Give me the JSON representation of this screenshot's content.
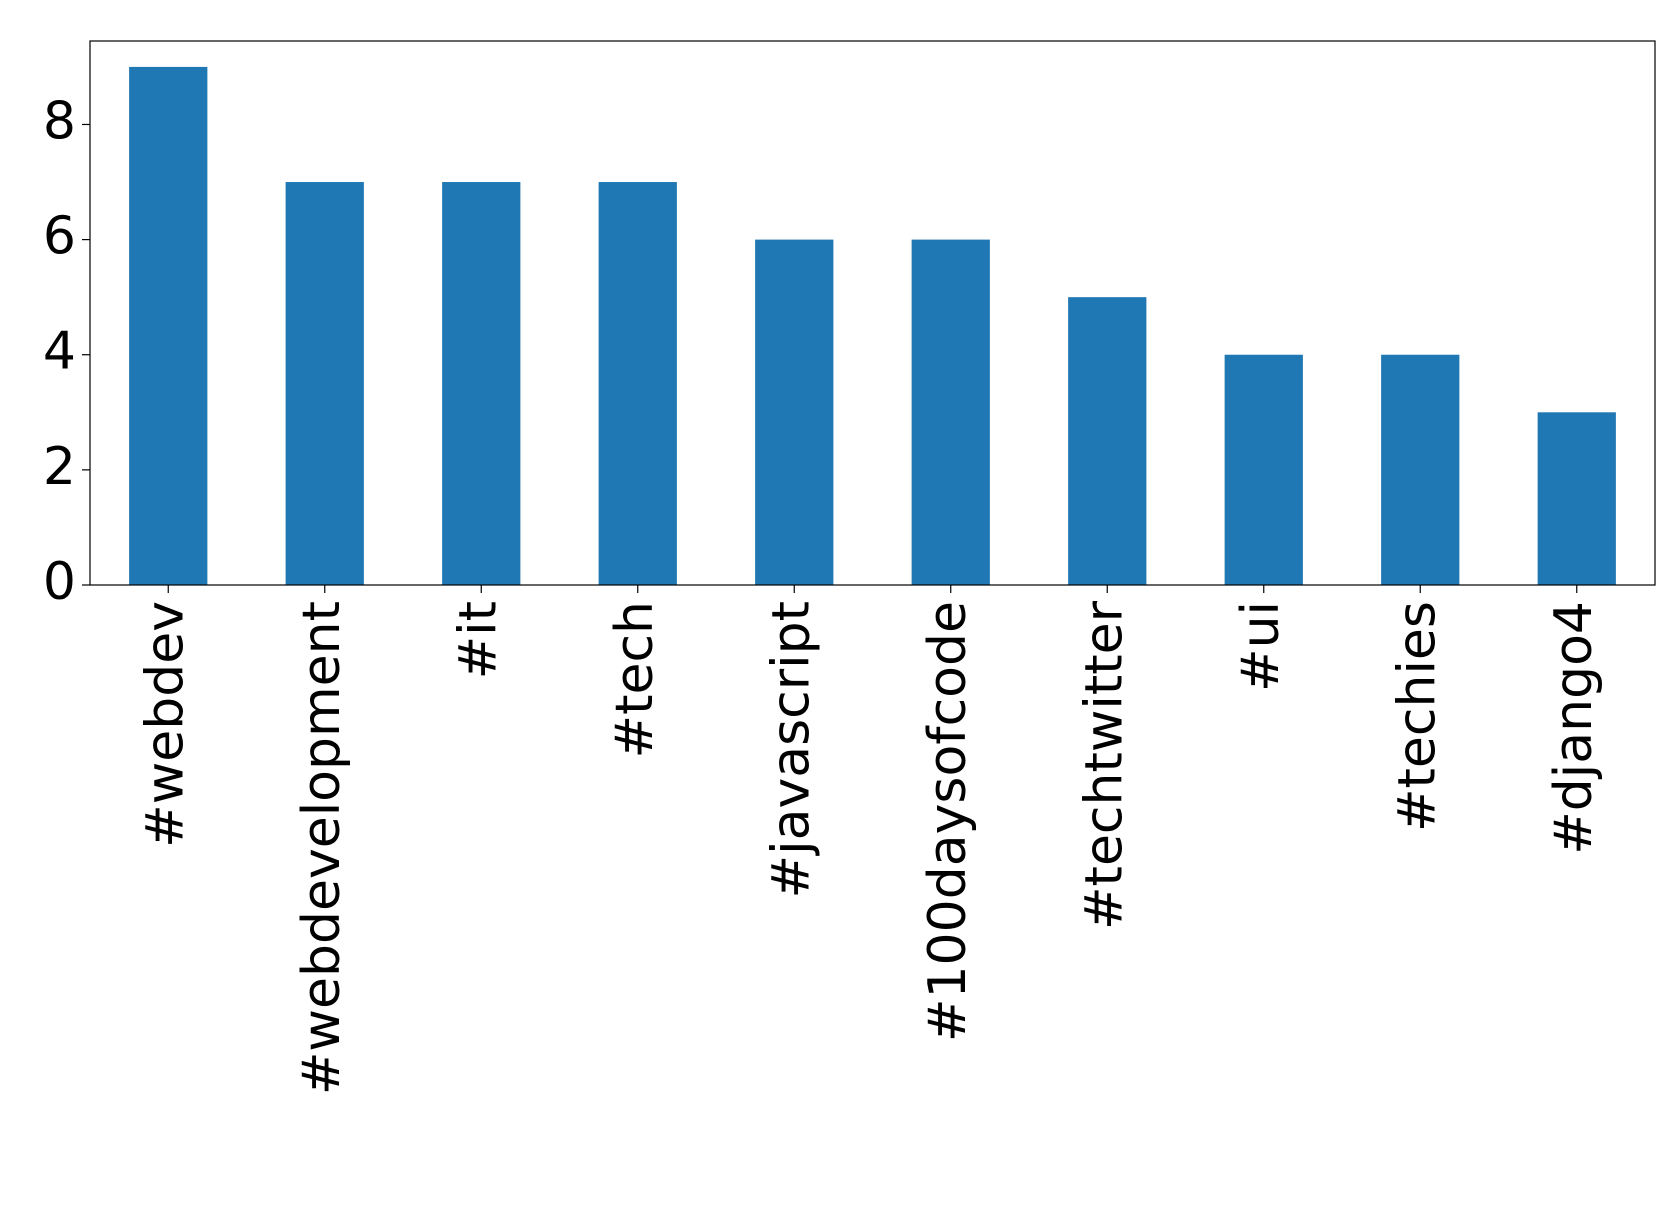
{
  "chart_data": {
    "type": "bar",
    "categories": [
      "#webdev",
      "#webdevelopment",
      "#it",
      "#tech",
      "#javascript",
      "#100daysofcode",
      "#techtwitter",
      "#ui",
      "#techies",
      "#django4"
    ],
    "values": [
      9,
      7,
      7,
      7,
      6,
      6,
      5,
      4,
      4,
      3
    ],
    "color": "#1f77b4",
    "ylim": [
      0,
      9.45
    ],
    "yticks": [
      0,
      2,
      4,
      6,
      8
    ],
    "grid": false
  }
}
